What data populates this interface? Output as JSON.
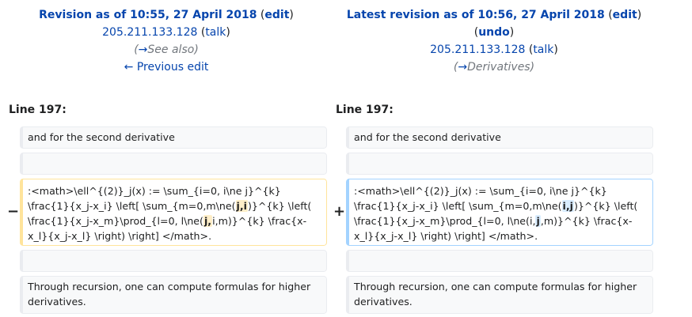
{
  "left_header": {
    "title": "Revision as of 10:55, 27 April 2018",
    "edit": "edit",
    "user": "205.211.133.128",
    "talk": "talk",
    "summary_arrow": "→",
    "summary_section": "See also",
    "prev": "← Previous edit"
  },
  "right_header": {
    "title": "Latest revision as of 10:56, 27 April 2018",
    "edit": "edit",
    "undo": "undo",
    "user": "205.211.133.128",
    "talk": "talk",
    "summary_arrow": "→",
    "summary_section": "Derivatives"
  },
  "line_label": "Line 197:",
  "rows": {
    "ctx1": "and for the second derivative",
    "ctx2": "",
    "ctx3": "",
    "ctx4": "Through recursion, one can compute formulas for higher derivatives."
  },
  "changed": {
    "del_marker": "−",
    "add_marker": "+",
    "del_a": ":<math>\\ell^{(2)}_j(x) := \\sum_{i=0, i\\ne j}^{k} \\frac{1}{x_j-x_i} \\left[ \\sum_{m=0,m\\ne(",
    "del_b": "j,i",
    "del_c": ")}^{k} \\left( \\frac{1}{x_j-x_m}\\prod_{l=0, l\\ne(",
    "del_d": "j,",
    "del_e": "i,m)}^{k} \\frac{x-x_l}{x_j-x_l} \\right) \\right] </math>.",
    "add_a": ":<math>\\ell^{(2)}_j(x) := \\sum_{i=0, i\\ne j}^{k} \\frac{1}{x_j-x_i} \\left[ \\sum_{m=0,m\\ne(",
    "add_b": "i,j",
    "add_c": ")}^{k} \\left( \\frac{1}{x_j-x_m}\\prod_{l=0, l\\ne(i,",
    "add_d": "j",
    "add_e": ",m)}^{k} \\frac{x-x_l}{x_j-x_l} \\right) \\right] </math>."
  }
}
